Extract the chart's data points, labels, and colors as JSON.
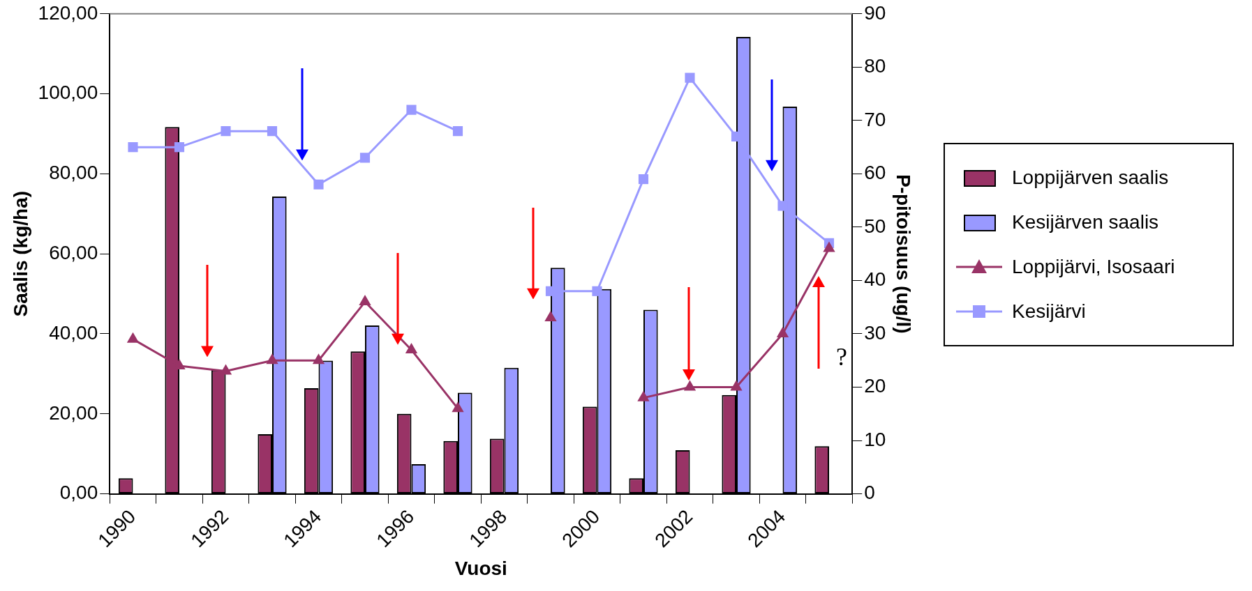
{
  "chart_data": {
    "type": "bar",
    "xlabel": "Vuosi",
    "ylabel": "Saalis (kg/ha)",
    "y2label": "P-pitoisuus (ug/l)",
    "categories": [
      "1990",
      null,
      "1992",
      null,
      "1994",
      null,
      "1996",
      null,
      "1998",
      null,
      "2000",
      null,
      "2002",
      null,
      "2004",
      null
    ],
    "series": [
      {
        "name": "Loppijärven saalis",
        "color": "#993366",
        "values": [
          3.9,
          91.7,
          31.0,
          14.9,
          26.4,
          35.6,
          20.0,
          13.2,
          13.8,
          null,
          21.8,
          3.9,
          10.9,
          24.7,
          null,
          11.9
        ]
      },
      {
        "name": "Kesijärven saalis",
        "color": "#9999ff",
        "values": [
          null,
          null,
          null,
          74.3,
          33.3,
          42.1,
          7.4,
          25.3,
          31.5,
          56.5,
          51.2,
          46.0,
          null,
          114.2,
          96.8,
          null
        ]
      },
      {
        "name": "Loppijärvi, Isosaari",
        "type": "line",
        "axis": "y2",
        "marker": "triangle",
        "color": "#993366",
        "values": [
          29,
          24,
          23,
          25,
          25,
          36,
          27,
          16,
          null,
          33,
          null,
          18,
          20,
          20,
          30,
          46
        ]
      },
      {
        "name": "Kesijärvi",
        "type": "line",
        "axis": "y2",
        "marker": "square",
        "color": "#9999ff",
        "values": [
          65,
          65,
          68,
          68,
          58,
          63,
          72,
          68,
          null,
          38,
          38,
          59,
          78,
          67,
          54,
          47
        ]
      }
    ],
    "ylim": [
      0,
      120
    ],
    "yticks": [
      {
        "value": 0,
        "label": "0,00"
      },
      {
        "value": 20,
        "label": "20,00"
      },
      {
        "value": 40,
        "label": "40,00"
      },
      {
        "value": 60,
        "label": "60,00"
      },
      {
        "value": 80,
        "label": "80,00"
      },
      {
        "value": 100,
        "label": "100,00"
      },
      {
        "value": 120,
        "label": "120,00"
      }
    ],
    "y2lim": [
      0,
      90
    ],
    "y2ticks": [
      0,
      10,
      20,
      30,
      40,
      50,
      60,
      70,
      80,
      90
    ],
    "legend": "right",
    "grid": false,
    "annotations": [
      "?"
    ]
  }
}
